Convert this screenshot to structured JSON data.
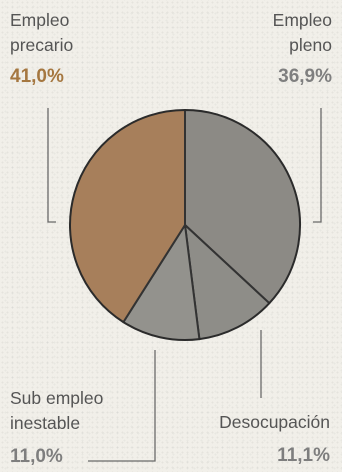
{
  "chart_data": {
    "type": "pie",
    "title": "",
    "slices": [
      {
        "label_lines": [
          "Empleo",
          "pleno"
        ],
        "value": 36.9,
        "value_text": "36,9%",
        "color": "#888681"
      },
      {
        "label_lines": [
          "Desocupación"
        ],
        "value": 11.1,
        "value_text": "11,1%",
        "color": "#8a8984"
      },
      {
        "label_lines": [
          "Sub empleo",
          "inestable"
        ],
        "value": 11.0,
        "value_text": "11,0%",
        "color": "#8f8e89"
      },
      {
        "label_lines": [
          "Empleo",
          "precario"
        ],
        "value": 41.0,
        "value_text": "41,0%",
        "color": "#a47a55"
      }
    ],
    "start_angle_deg": 0,
    "direction": "clockwise",
    "legend": "none",
    "grid": false
  }
}
